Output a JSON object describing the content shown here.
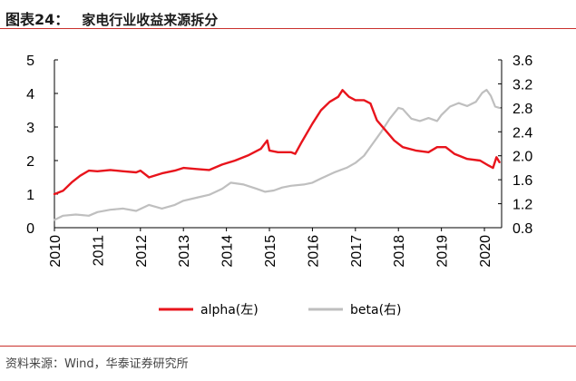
{
  "figure": {
    "label": "图表24：",
    "title": "家电行业收益来源拆分",
    "source": "资料来源：Wind，华泰证券研究所"
  },
  "chart_data": {
    "type": "line",
    "x_ticks": [
      "2010",
      "2011",
      "2012",
      "2013",
      "2014",
      "2015",
      "2016",
      "2017",
      "2018",
      "2019",
      "2020"
    ],
    "xlim": [
      2010,
      2020.4
    ],
    "left_axis": {
      "ylim": [
        0,
        5
      ],
      "ticks": [
        "0",
        "1",
        "2",
        "3",
        "4",
        "5"
      ]
    },
    "right_axis": {
      "ylim": [
        0.8,
        3.6
      ],
      "ticks": [
        "0.8",
        "1.2",
        "1.6",
        "2.0",
        "2.4",
        "2.8",
        "3.2",
        "3.6"
      ]
    },
    "legend_position": "bottom",
    "grid": false,
    "series": [
      {
        "name": "alpha(左)",
        "axis": "left",
        "color": "#e8141c",
        "points": [
          [
            2010.0,
            1.0
          ],
          [
            2010.2,
            1.1
          ],
          [
            2010.4,
            1.35
          ],
          [
            2010.6,
            1.55
          ],
          [
            2010.8,
            1.7
          ],
          [
            2011.0,
            1.68
          ],
          [
            2011.3,
            1.72
          ],
          [
            2011.6,
            1.68
          ],
          [
            2011.9,
            1.65
          ],
          [
            2012.0,
            1.7
          ],
          [
            2012.2,
            1.5
          ],
          [
            2012.5,
            1.62
          ],
          [
            2012.8,
            1.7
          ],
          [
            2013.0,
            1.78
          ],
          [
            2013.3,
            1.75
          ],
          [
            2013.6,
            1.72
          ],
          [
            2013.9,
            1.88
          ],
          [
            2014.2,
            2.0
          ],
          [
            2014.5,
            2.15
          ],
          [
            2014.8,
            2.35
          ],
          [
            2014.95,
            2.6
          ],
          [
            2015.0,
            2.3
          ],
          [
            2015.2,
            2.25
          ],
          [
            2015.5,
            2.25
          ],
          [
            2015.6,
            2.2
          ],
          [
            2015.75,
            2.55
          ],
          [
            2016.0,
            3.1
          ],
          [
            2016.2,
            3.5
          ],
          [
            2016.4,
            3.75
          ],
          [
            2016.6,
            3.9
          ],
          [
            2016.7,
            4.1
          ],
          [
            2016.85,
            3.9
          ],
          [
            2017.0,
            3.8
          ],
          [
            2017.2,
            3.8
          ],
          [
            2017.35,
            3.7
          ],
          [
            2017.5,
            3.2
          ],
          [
            2017.7,
            2.9
          ],
          [
            2017.9,
            2.6
          ],
          [
            2018.1,
            2.4
          ],
          [
            2018.4,
            2.3
          ],
          [
            2018.7,
            2.25
          ],
          [
            2018.9,
            2.4
          ],
          [
            2019.1,
            2.4
          ],
          [
            2019.3,
            2.2
          ],
          [
            2019.6,
            2.05
          ],
          [
            2019.9,
            2.0
          ],
          [
            2020.1,
            1.85
          ],
          [
            2020.2,
            1.78
          ],
          [
            2020.28,
            2.1
          ],
          [
            2020.35,
            1.95
          ]
        ]
      },
      {
        "name": "beta(右)",
        "axis": "right",
        "color": "#bfbfbf",
        "points": [
          [
            2010.0,
            0.93
          ],
          [
            2010.2,
            1.0
          ],
          [
            2010.5,
            1.02
          ],
          [
            2010.8,
            1.0
          ],
          [
            2011.0,
            1.06
          ],
          [
            2011.3,
            1.1
          ],
          [
            2011.6,
            1.12
          ],
          [
            2011.9,
            1.08
          ],
          [
            2012.2,
            1.18
          ],
          [
            2012.5,
            1.12
          ],
          [
            2012.8,
            1.18
          ],
          [
            2013.0,
            1.25
          ],
          [
            2013.3,
            1.3
          ],
          [
            2013.6,
            1.35
          ],
          [
            2013.9,
            1.45
          ],
          [
            2014.1,
            1.55
          ],
          [
            2014.4,
            1.52
          ],
          [
            2014.7,
            1.45
          ],
          [
            2014.9,
            1.4
          ],
          [
            2015.1,
            1.42
          ],
          [
            2015.3,
            1.47
          ],
          [
            2015.5,
            1.5
          ],
          [
            2015.8,
            1.52
          ],
          [
            2016.0,
            1.55
          ],
          [
            2016.2,
            1.62
          ],
          [
            2016.5,
            1.72
          ],
          [
            2016.8,
            1.8
          ],
          [
            2017.0,
            1.88
          ],
          [
            2017.2,
            2.0
          ],
          [
            2017.4,
            2.2
          ],
          [
            2017.6,
            2.4
          ],
          [
            2017.8,
            2.62
          ],
          [
            2018.0,
            2.8
          ],
          [
            2018.1,
            2.78
          ],
          [
            2018.3,
            2.62
          ],
          [
            2018.5,
            2.58
          ],
          [
            2018.7,
            2.63
          ],
          [
            2018.9,
            2.58
          ],
          [
            2019.0,
            2.68
          ],
          [
            2019.2,
            2.82
          ],
          [
            2019.4,
            2.88
          ],
          [
            2019.6,
            2.83
          ],
          [
            2019.8,
            2.9
          ],
          [
            2019.95,
            3.05
          ],
          [
            2020.05,
            3.1
          ],
          [
            2020.15,
            3.0
          ],
          [
            2020.25,
            2.82
          ],
          [
            2020.35,
            2.8
          ]
        ]
      }
    ]
  }
}
